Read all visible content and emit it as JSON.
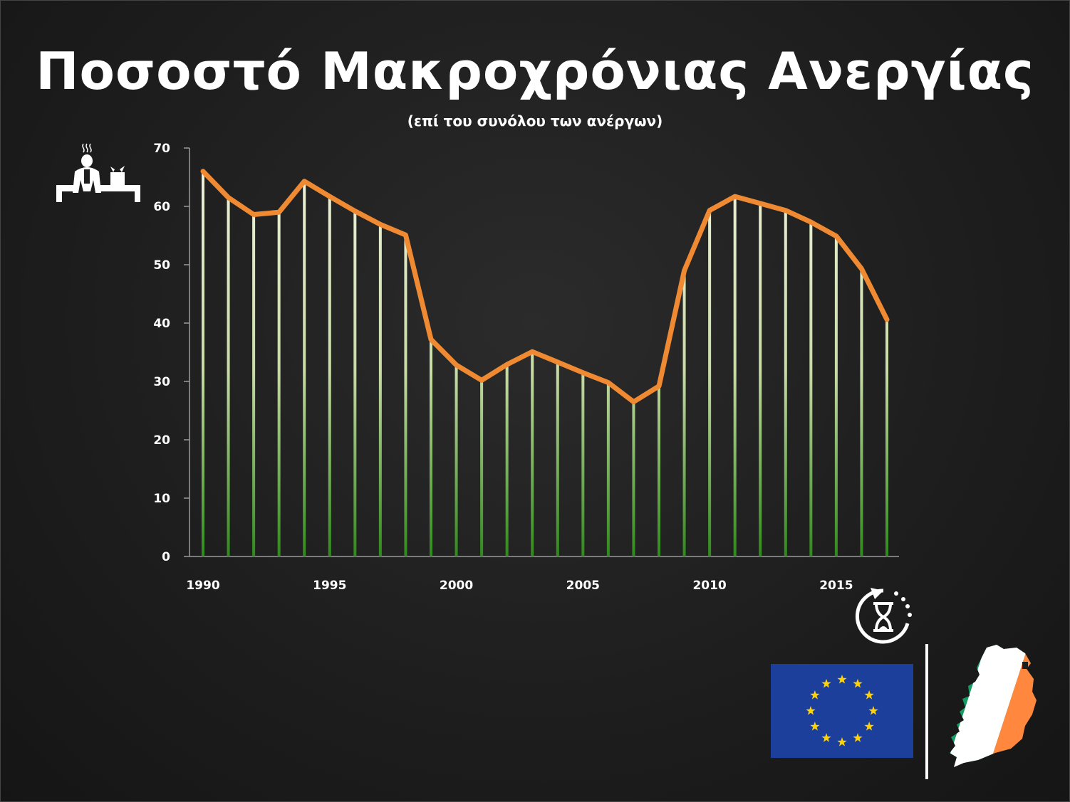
{
  "header": {
    "title": "Ποσοστό Μακροχρόνιας Ανεργίας",
    "subtitle": "(επί του συνόλου των ανέργων)"
  },
  "icons": {
    "person": "unemployed-person-icon",
    "hourglass": "hourglass-cycle-icon",
    "eu_flag": "eu-flag-icon",
    "ireland_map": "ireland-map-icon"
  },
  "colors": {
    "line": "#f08a32",
    "bar_top": "#f2f4e0",
    "bar_bottom": "#2f8a1a",
    "eu_blue": "#1d3f9c",
    "eu_star": "#ffd200",
    "ie_green": "#169b62",
    "ie_orange": "#ff883e"
  },
  "chart_data": {
    "type": "line",
    "title": "Ποσοστό Μακροχρόνιας Ανεργίας",
    "subtitle": "(επί του συνόλου των ανέργων)",
    "xlabel": "",
    "ylabel": "",
    "x": [
      1990,
      1991,
      1992,
      1993,
      1994,
      1995,
      1996,
      1997,
      1998,
      1999,
      2000,
      2001,
      2002,
      2003,
      2004,
      2005,
      2006,
      2007,
      2008,
      2009,
      2010,
      2011,
      2012,
      2013,
      2014,
      2015,
      2016,
      2017
    ],
    "values": [
      66.0,
      61.5,
      58.6,
      59.0,
      64.3,
      61.7,
      59.2,
      56.9,
      55.1,
      37.2,
      32.8,
      30.2,
      32.9,
      35.1,
      33.3,
      31.5,
      29.8,
      26.5,
      29.2,
      49.0,
      59.3,
      61.7,
      60.5,
      59.3,
      57.3,
      54.9,
      49.3,
      40.6
    ],
    "xticks": [
      "1990",
      "1995",
      "2000",
      "2005",
      "2010",
      "2015"
    ],
    "yticks": [
      "0",
      "10",
      "20",
      "30",
      "40",
      "50",
      "60",
      "70"
    ],
    "xlim": [
      1990,
      2017
    ],
    "ylim": [
      0,
      70
    ],
    "drop_lines": true,
    "grid": false,
    "legend": "none"
  }
}
